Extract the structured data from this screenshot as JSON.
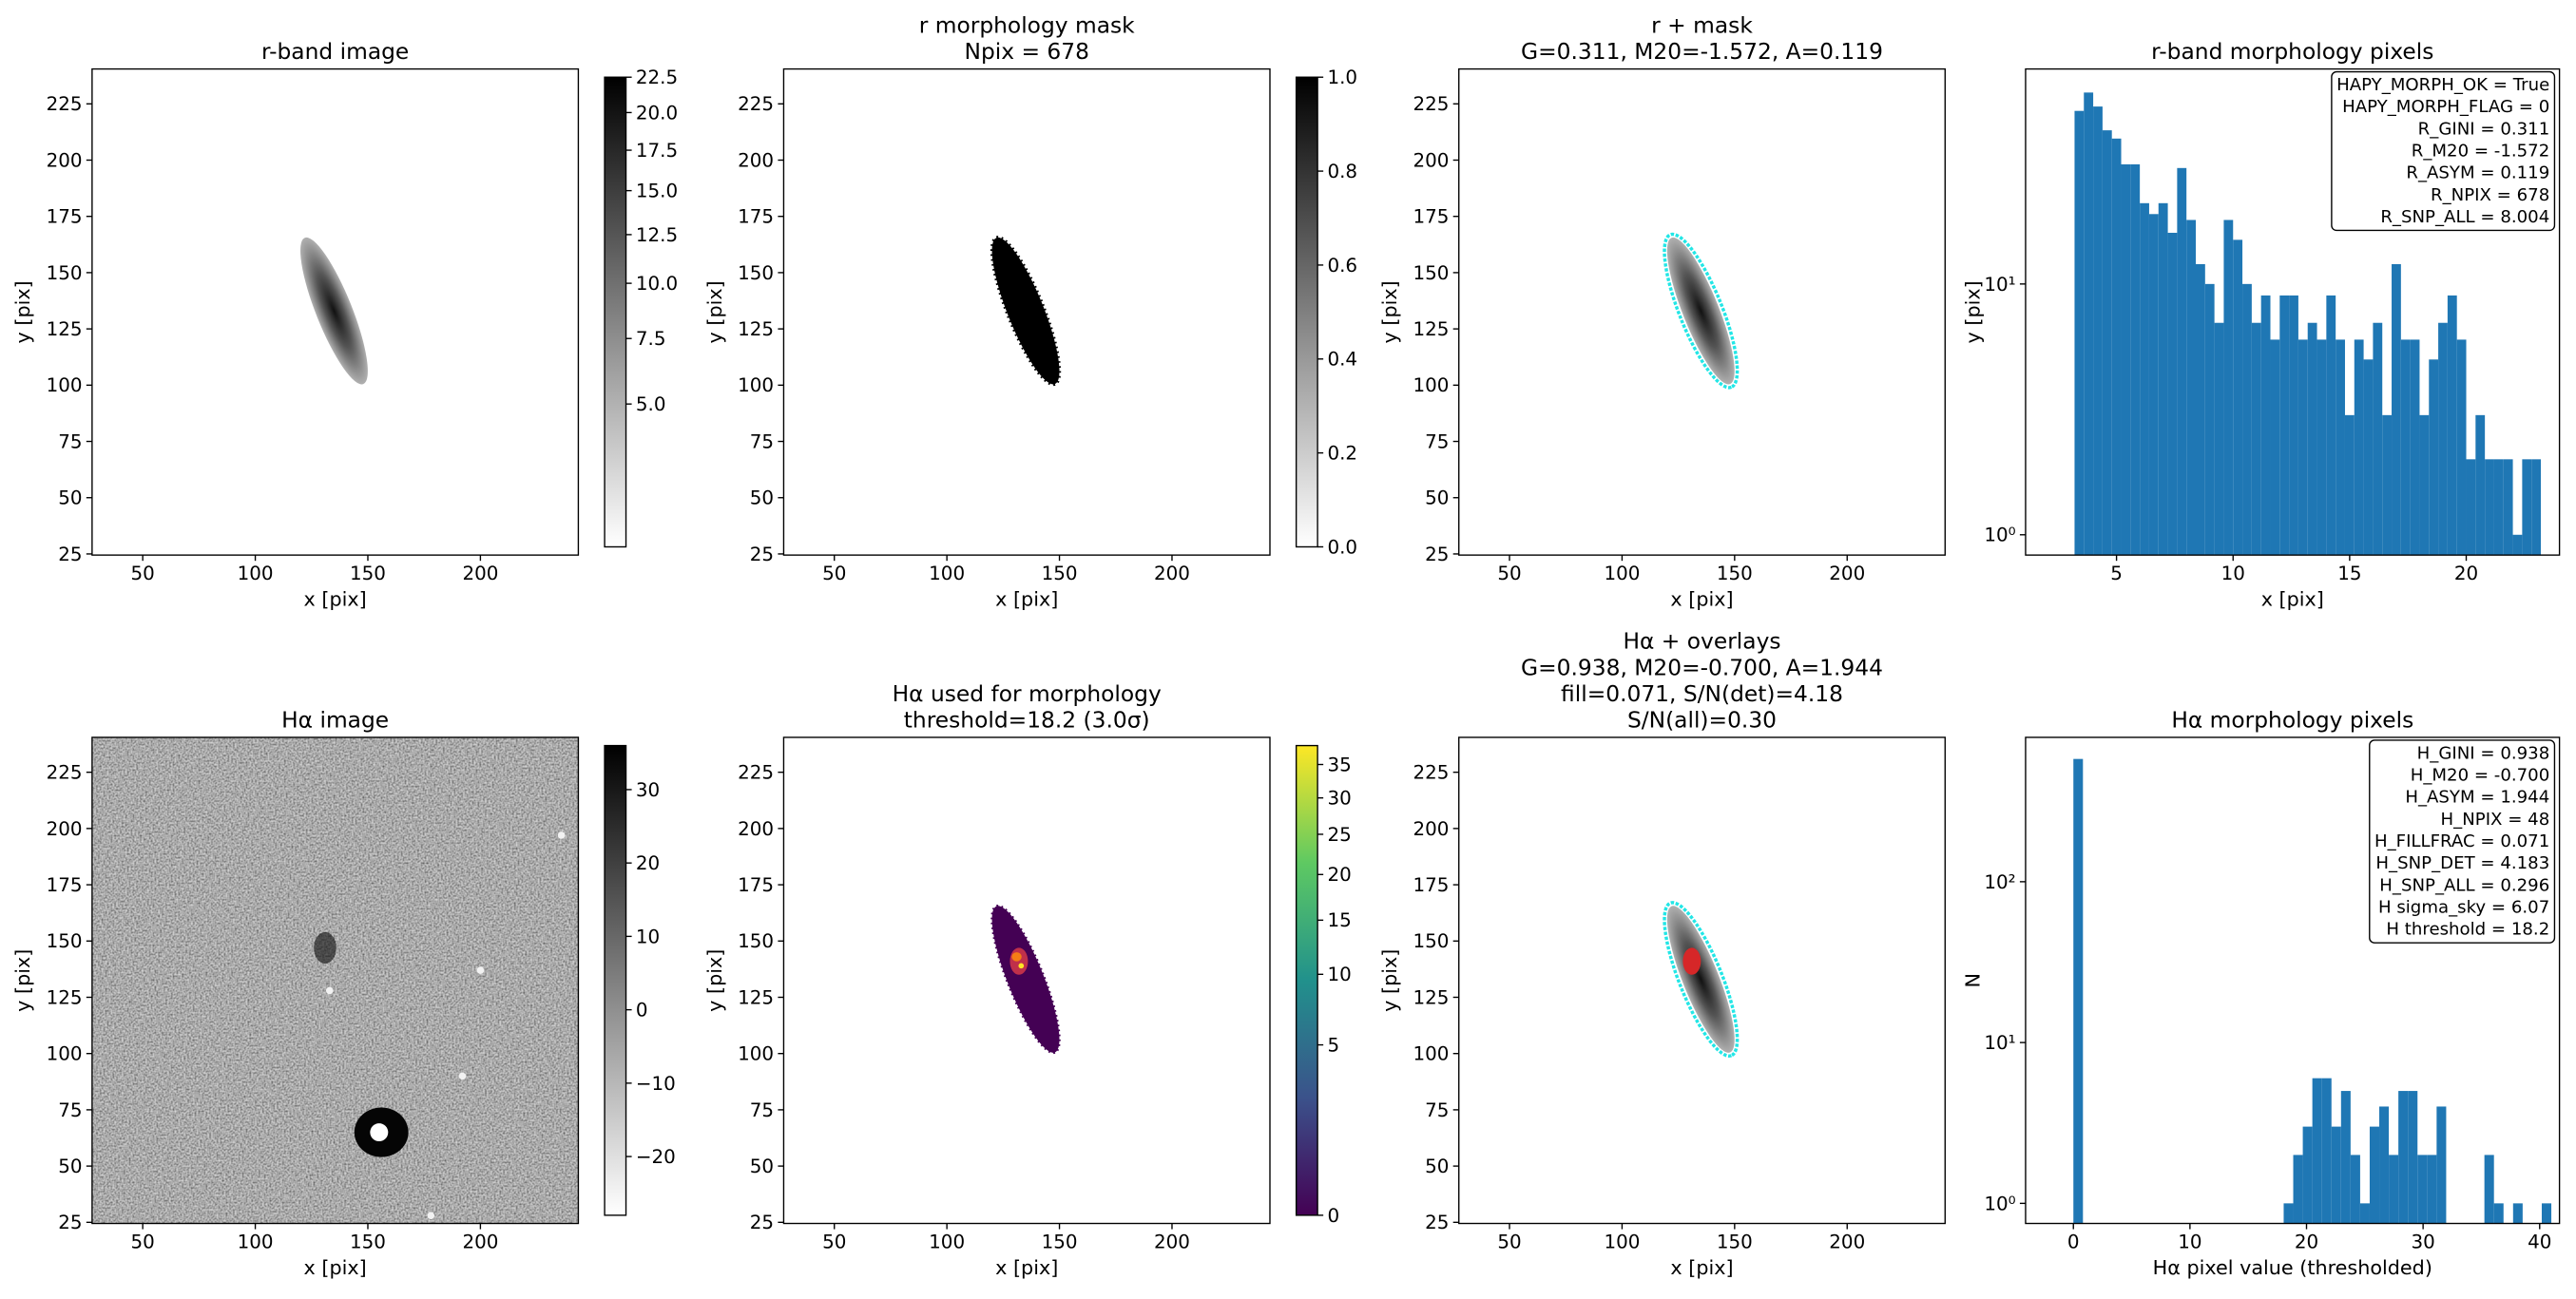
{
  "chart_data": [
    {
      "type": "image",
      "title": [
        "r-band image"
      ],
      "xlabel": "x [pix]",
      "ylabel": "y [pix]",
      "xlim": [
        27.5,
        243.5
      ],
      "ylim": [
        24.5,
        240.5
      ],
      "xticks": [
        50,
        100,
        150,
        200
      ],
      "yticks": [
        25,
        50,
        75,
        100,
        125,
        150,
        175,
        200,
        225
      ],
      "colormap": "gray_r",
      "colorbar": {
        "lim": [
          1.3,
          22.5
        ],
        "scale": "sqrt",
        "ticks": [
          {
            "value": 5,
            "label": "5.0"
          },
          7.5,
          {
            "value": 10,
            "label": "10.0"
          },
          12.5,
          {
            "value": 15,
            "label": "15.0"
          },
          17.5,
          {
            "value": 20,
            "label": "20.0"
          },
          22.5
        ]
      }
    },
    {
      "type": "image",
      "title": [
        "r morphology mask",
        "Npix = 678"
      ],
      "xlabel": "x [pix]",
      "ylabel": "y [pix]",
      "xlim": [
        27.5,
        243.5
      ],
      "ylim": [
        24.5,
        240.5
      ],
      "xticks": [
        50,
        100,
        150,
        200
      ],
      "yticks": [
        25,
        50,
        75,
        100,
        125,
        150,
        175,
        200,
        225
      ],
      "colormap": "gray_r",
      "colorbar": {
        "lim": [
          0,
          1
        ],
        "scale": "linear",
        "ticks": [
          {
            "value": 0,
            "label": "0.0"
          },
          0.2,
          0.4,
          0.6,
          0.8,
          {
            "value": 1,
            "label": "1.0"
          }
        ]
      }
    },
    {
      "type": "image",
      "title": [
        "r + mask",
        "G=0.311, M20=-1.572, A=0.119"
      ],
      "xlabel": "x [pix]",
      "ylabel": "y [pix]",
      "xlim": [
        27.5,
        243.5
      ],
      "ylim": [
        24.5,
        240.5
      ],
      "xticks": [
        50,
        100,
        150,
        200
      ],
      "yticks": [
        25,
        50,
        75,
        100,
        125,
        150,
        175,
        200,
        225
      ],
      "colormap": "gray_r"
    },
    {
      "type": "histogram",
      "title": [
        "r-band morphology pixels"
      ],
      "xlabel": "x [pix]",
      "ylabel": "y [pix]",
      "bins": [
        3.2,
        3.6,
        4.0,
        4.4,
        4.8,
        5.2,
        5.6,
        6.0,
        6.4,
        6.8,
        7.2,
        7.6,
        8.0,
        8.4,
        8.8,
        9.2,
        9.6,
        10.0,
        10.4,
        10.8,
        11.2,
        11.6,
        12.0,
        12.4,
        12.8,
        13.2,
        13.6,
        14.0,
        14.4,
        14.8,
        15.2,
        15.6,
        16.0,
        16.4,
        16.8,
        17.2,
        17.6,
        18.0,
        18.4,
        18.8,
        19.2,
        19.6,
        20.0,
        20.4,
        20.8,
        21.2,
        21.6,
        22.0,
        22.4,
        22.8,
        23.2
      ],
      "values": [
        49,
        58,
        51,
        41,
        38,
        30,
        30,
        21,
        19,
        21,
        16,
        29,
        18,
        12,
        10,
        7,
        18,
        15,
        10,
        7,
        9,
        6,
        9,
        9,
        6,
        7,
        6,
        9,
        6,
        3,
        6,
        5,
        7,
        3,
        12,
        6,
        6,
        3,
        5,
        7,
        9,
        6,
        2,
        3,
        2,
        2,
        2,
        1,
        2,
        2
      ],
      "color": "#1f77b4",
      "xlim": [
        1.1,
        24.0
      ],
      "xticks": [
        5,
        10,
        15,
        20
      ],
      "ylim": [
        0.83,
        72
      ],
      "log_y": true,
      "yticks": [
        {
          "value": 1,
          "label": "10⁰"
        },
        {
          "value": 10,
          "label": "10¹"
        }
      ],
      "annotation": [
        "HAPY_MORPH_OK = True",
        "HAPY_MORPH_FLAG = 0",
        "R_GINI = 0.311",
        "R_M20 = -1.572",
        "R_ASYM = 0.119",
        "R_NPIX = 678",
        "R_SNP_ALL = 8.004"
      ]
    },
    {
      "type": "image",
      "title": [
        "Hα image"
      ],
      "xlabel": "x [pix]",
      "ylabel": "y [pix]",
      "xlim": [
        27.5,
        243.5
      ],
      "ylim": [
        24.5,
        240.5
      ],
      "xticks": [
        50,
        100,
        150,
        200
      ],
      "yticks": [
        25,
        50,
        75,
        100,
        125,
        150,
        175,
        200,
        225
      ],
      "colormap": "gray_r",
      "colorbar": {
        "lim": [
          -28,
          36
        ],
        "scale": "linear",
        "ticks": [
          {
            "value": -20,
            "label": "−20"
          },
          {
            "value": -10,
            "label": "−10"
          },
          0,
          10,
          20,
          30
        ]
      }
    },
    {
      "type": "image",
      "title": [
        "Hα used for morphology",
        "threshold=18.2 (3.0σ)"
      ],
      "xlabel": "x [pix]",
      "ylabel": "y [pix]",
      "xlim": [
        27.5,
        243.5
      ],
      "ylim": [
        24.5,
        240.5
      ],
      "xticks": [
        50,
        100,
        150,
        200
      ],
      "yticks": [
        25,
        50,
        75,
        100,
        125,
        150,
        175,
        200,
        225
      ],
      "colormap": "viridis",
      "colorbar": {
        "lim": [
          0,
          38
        ],
        "scale": "sqrt",
        "ticks": [
          0,
          5,
          10,
          15,
          20,
          25,
          30,
          35
        ]
      }
    },
    {
      "type": "image",
      "title": [
        "Hα + overlays",
        "G=0.938, M20=-0.700, A=1.944",
        "fill=0.071, S/N(det)=4.18",
        "S/N(all)=0.30"
      ],
      "xlabel": "x [pix]",
      "ylabel": "y [pix]",
      "xlim": [
        27.5,
        243.5
      ],
      "ylim": [
        24.5,
        240.5
      ],
      "xticks": [
        50,
        100,
        150,
        200
      ],
      "yticks": [
        25,
        50,
        75,
        100,
        125,
        150,
        175,
        200,
        225
      ],
      "colormap": "gray_r"
    },
    {
      "type": "histogram",
      "title": [
        "Hα morphology pixels"
      ],
      "xlabel": "Hα pixel value (thresholded)",
      "ylabel": "N",
      "bins": [
        0,
        0.82,
        1.64,
        2.46,
        3.28,
        4.1,
        4.92,
        5.74,
        6.56,
        7.38,
        8.2,
        9.02,
        9.84,
        10.66,
        11.48,
        12.3,
        13.12,
        13.94,
        14.76,
        15.58,
        16.4,
        17.22,
        18.04,
        18.86,
        19.68,
        20.5,
        21.32,
        22.14,
        22.96,
        23.78,
        24.6,
        25.42,
        26.24,
        27.06,
        27.88,
        28.7,
        29.52,
        30.34,
        31.16,
        31.98,
        32.8,
        33.62,
        34.44,
        35.26,
        36.08,
        36.9,
        37.72,
        38.54,
        39.36,
        40.18,
        41.0
      ],
      "values": [
        580,
        0,
        0,
        0,
        0,
        0,
        0,
        0,
        0,
        0,
        0,
        0,
        0,
        0,
        0,
        0,
        0,
        0,
        0,
        0,
        0,
        0,
        1,
        2,
        3,
        6,
        6,
        3,
        5,
        2,
        1,
        3,
        4,
        2,
        5,
        5,
        2,
        2,
        4,
        0,
        0,
        0,
        0,
        2,
        1,
        0,
        1,
        0,
        0,
        1
      ],
      "color": "#1f77b4",
      "xlim": [
        -4.1,
        41.7
      ],
      "xticks": [
        0,
        10,
        20,
        30,
        40
      ],
      "ylim": [
        0.75,
        790
      ],
      "log_y": true,
      "yticks": [
        {
          "value": 1,
          "label": "10⁰"
        },
        {
          "value": 10,
          "label": "10¹"
        },
        {
          "value": 100,
          "label": "10²"
        }
      ],
      "annotation": [
        "H_GINI = 0.938",
        "H_M20 = -0.700",
        "H_ASYM = 1.944",
        "H_NPIX = 48",
        "H_FILLFRAC = 0.071",
        "H_SNP_DET = 4.183",
        "H_SNP_ALL = 0.296",
        "H sigma_sky = 6.07",
        "H threshold = 18.2"
      ]
    }
  ]
}
